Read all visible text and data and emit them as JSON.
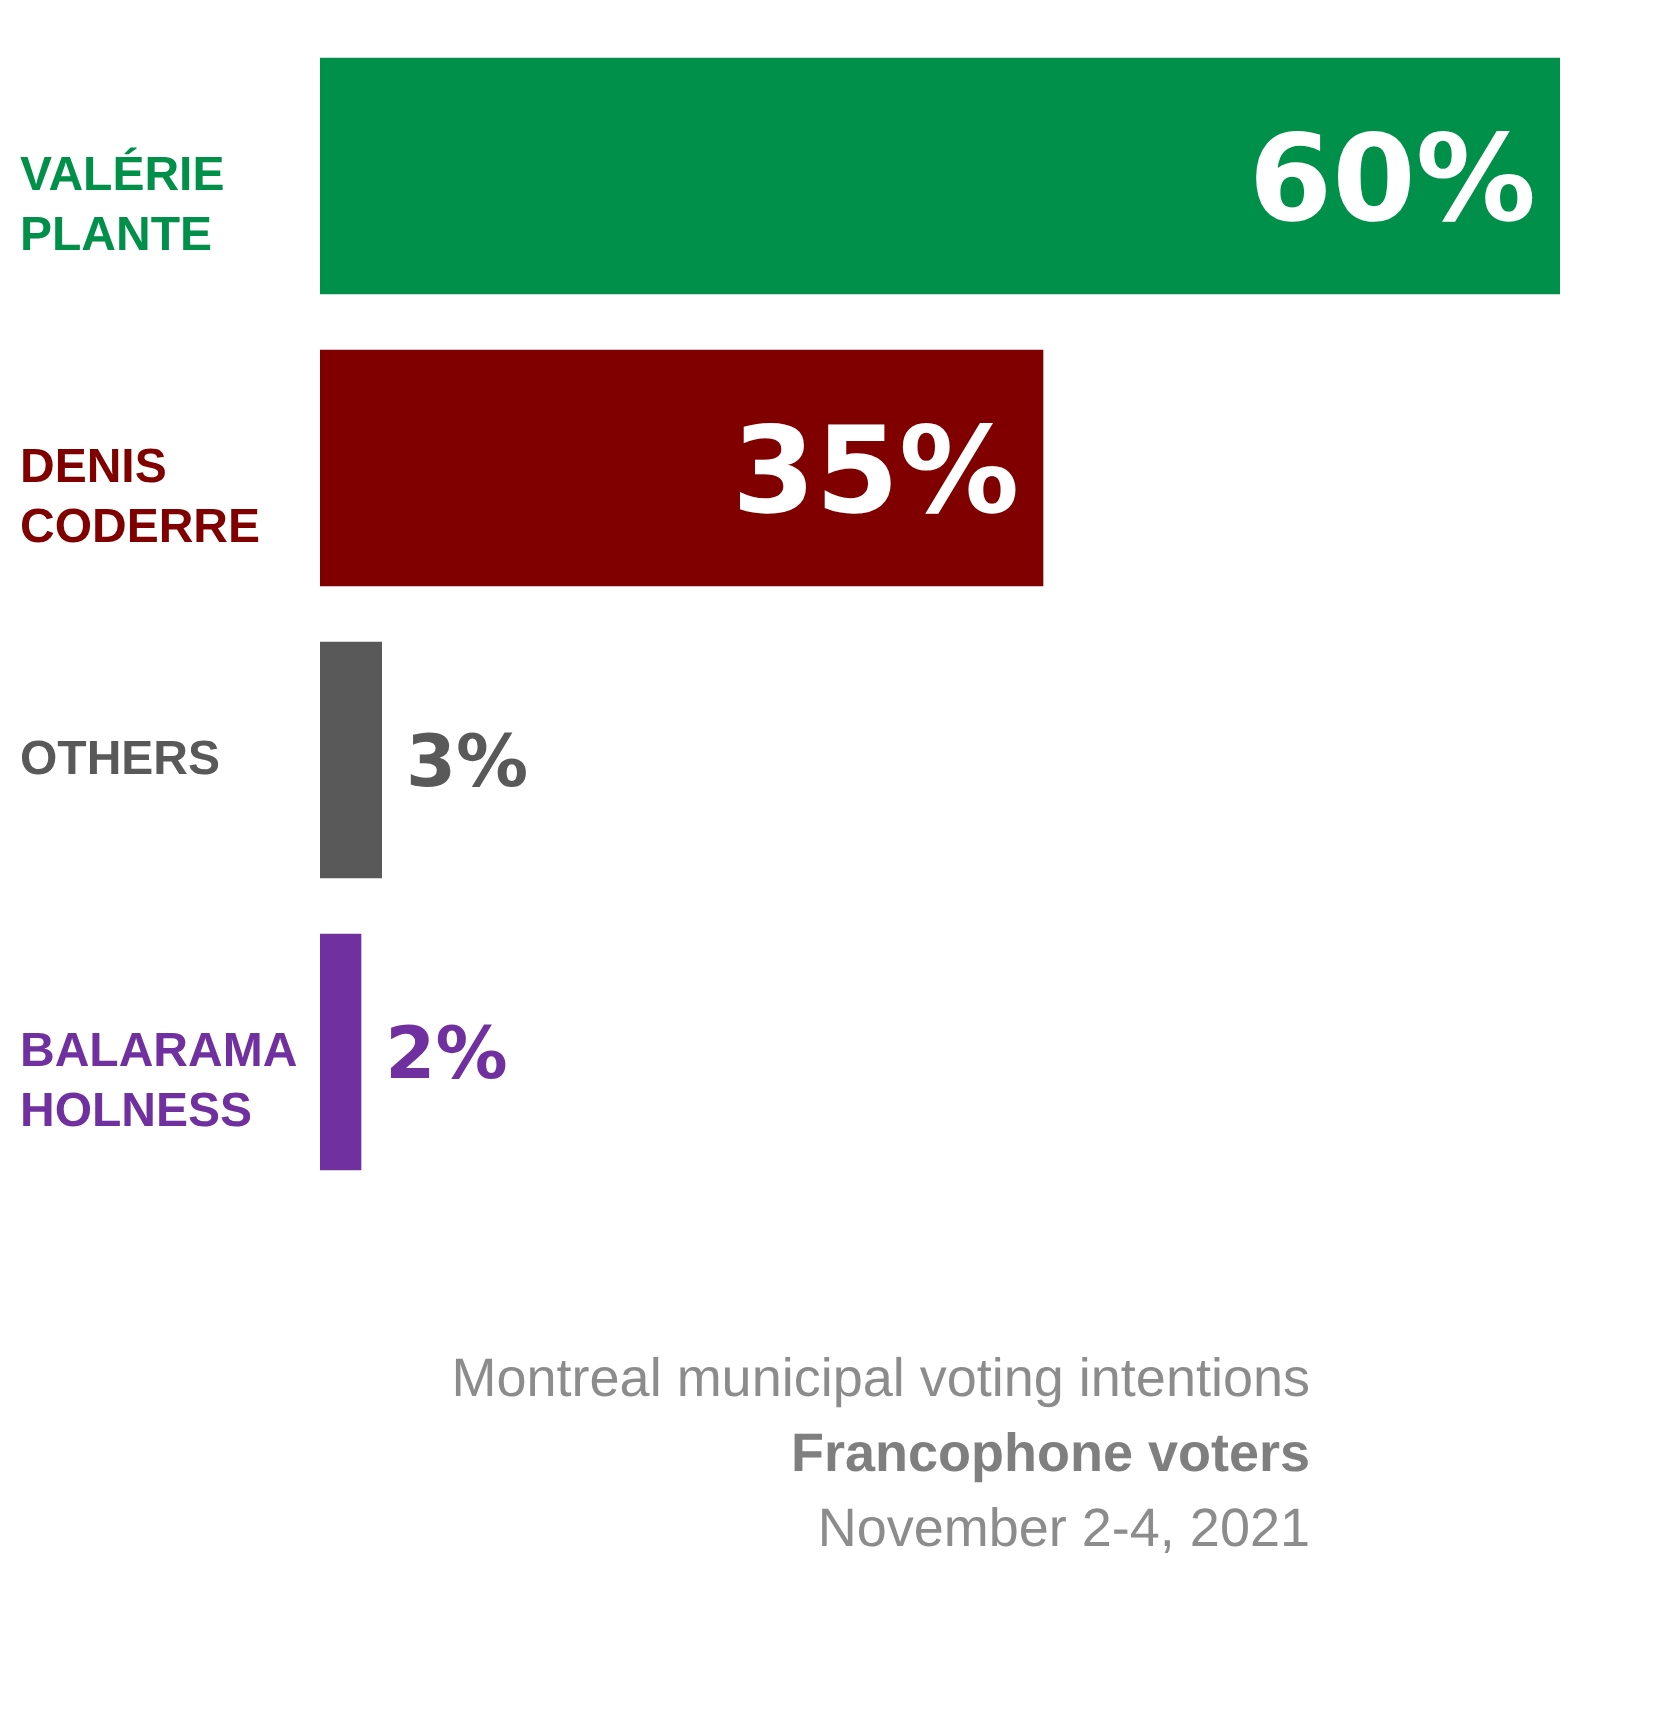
{
  "chart_data": {
    "type": "bar",
    "orientation": "horizontal",
    "categories": [
      "VALÉRIE PLANTE",
      "DENIS CODERRE",
      "OTHERS",
      "BALARAMA HOLNESS"
    ],
    "values": [
      60,
      35,
      3,
      2
    ],
    "value_labels": [
      "60%",
      "35%",
      "3%",
      "2%"
    ],
    "colors": [
      "#00904a",
      "#800000",
      "#595959",
      "#7030a0"
    ],
    "title": "Montreal municipal voting intentions",
    "subtitle": "Francophone voters",
    "annotations": [
      "November 2-4, 2021"
    ]
  }
}
